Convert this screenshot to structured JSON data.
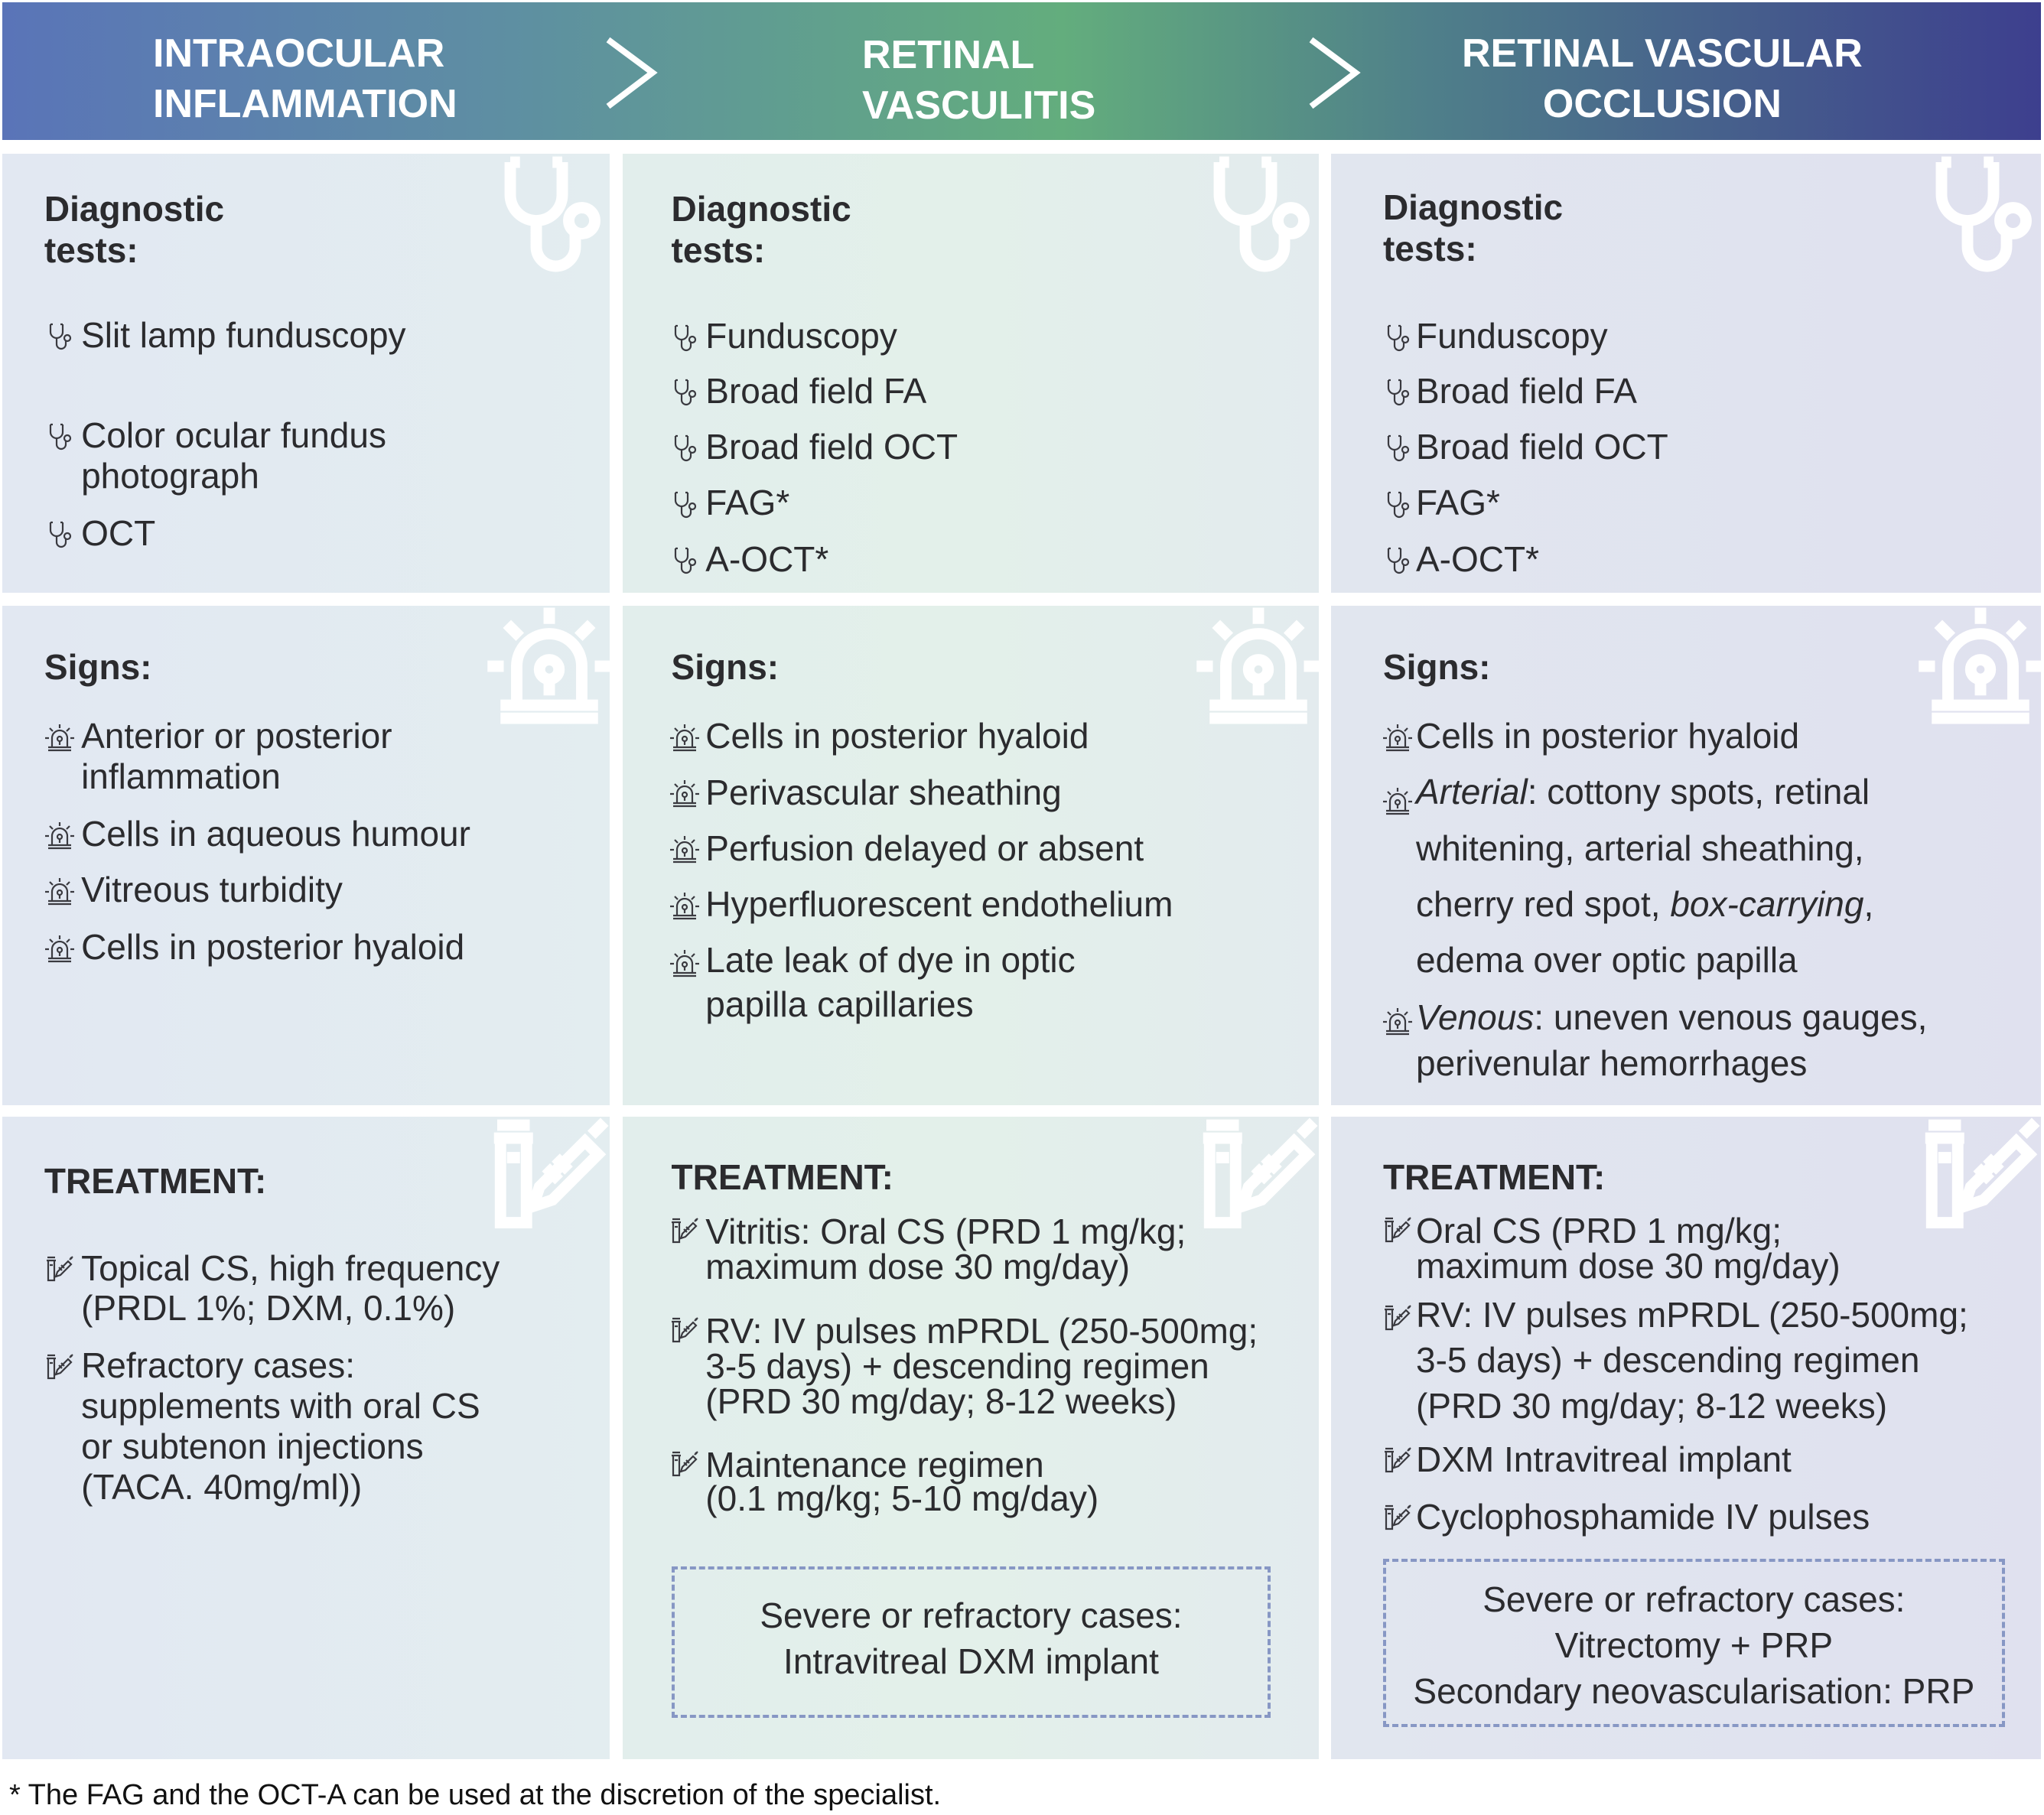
{
  "header": {
    "stages": [
      {
        "lines": [
          "INTRAOCULAR",
          "INFLAMMATION"
        ]
      },
      {
        "lines": [
          "RETINAL",
          "VASCULITIS"
        ]
      },
      {
        "lines": [
          "RETINAL VASCULAR",
          "OCCLUSION"
        ]
      }
    ],
    "arrow_icon": "chevron-right-icon",
    "gradient_colors": [
      "#5a74b8",
      "#63ad7d",
      "#3d3f8e"
    ]
  },
  "columns": [
    {
      "diagnostic": {
        "heading": [
          "Diagnostic",
          "tests:"
        ],
        "icon": "stethoscope-icon",
        "items": [
          {
            "lines": [
              "Slit lamp funduscopy"
            ]
          },
          {
            "lines": [
              "Color ocular fundus",
              "photograph"
            ]
          },
          {
            "lines": [
              "OCT"
            ]
          }
        ]
      },
      "signs": {
        "heading": [
          "Signs:"
        ],
        "icon": "alarm-siren-icon",
        "items": [
          {
            "lines": [
              "Anterior or posterior",
              "inflammation"
            ]
          },
          {
            "lines": [
              "Cells in aqueous humour"
            ]
          },
          {
            "lines": [
              "Vitreous turbidity"
            ]
          },
          {
            "lines": [
              "Cells in posterior hyaloid"
            ]
          }
        ]
      },
      "treatment": {
        "heading": [
          "TREATMENT:"
        ],
        "icon": "syringe-vial-icon",
        "items": [
          {
            "lines": [
              "Topical CS, high frequency",
              "(PRDL 1%; DXM, 0.1%)"
            ]
          },
          {
            "lines": [
              "Refractory cases:",
              "supplements with oral CS",
              "or subtenon injections",
              "(TACA. 40mg/ml))"
            ]
          }
        ]
      }
    },
    {
      "diagnostic": {
        "heading": [
          "Diagnostic",
          "tests:"
        ],
        "icon": "stethoscope-icon",
        "items": [
          {
            "lines": [
              "Funduscopy"
            ]
          },
          {
            "lines": [
              "Broad field FA"
            ]
          },
          {
            "lines": [
              "Broad field OCT"
            ]
          },
          {
            "lines": [
              "FAG*"
            ]
          },
          {
            "lines": [
              "A-OCT*"
            ]
          }
        ]
      },
      "signs": {
        "heading": [
          "Signs:"
        ],
        "icon": "alarm-siren-icon",
        "items": [
          {
            "lines": [
              "Cells in posterior hyaloid"
            ]
          },
          {
            "lines": [
              "Perivascular sheathing"
            ]
          },
          {
            "lines": [
              "Perfusion delayed or absent"
            ]
          },
          {
            "lines": [
              "Hyperfluorescent endothelium"
            ]
          },
          {
            "lines": [
              "Late leak of dye in optic",
              " papilla capillaries"
            ]
          }
        ]
      },
      "treatment": {
        "heading": [
          "TREATMENT:"
        ],
        "icon": "syringe-vial-icon",
        "items": [
          {
            "lines": [
              "Vitritis: Oral CS (PRD 1 mg/kg;",
              "maximum dose 30 mg/day)"
            ]
          },
          {
            "lines": [
              "RV: IV pulses mPRDL (250-500mg;",
              "3-5 days) + descending regimen",
              "(PRD 30 mg/day; 8-12 weeks)"
            ]
          },
          {
            "lines": [
              "Maintenance regimen",
              "(0.1 mg/kg; 5-10 mg/day)"
            ]
          }
        ],
        "box": [
          "Severe or refractory cases:",
          "Intravitreal DXM implant"
        ]
      }
    },
    {
      "diagnostic": {
        "heading": [
          "Diagnostic",
          "tests:"
        ],
        "icon": "stethoscope-icon",
        "items": [
          {
            "lines": [
              "Funduscopy"
            ]
          },
          {
            "lines": [
              "Broad field FA"
            ]
          },
          {
            "lines": [
              "Broad field OCT"
            ]
          },
          {
            "lines": [
              "FAG*"
            ]
          },
          {
            "lines": [
              "A-OCT*"
            ]
          }
        ]
      },
      "signs": {
        "heading": [
          "Signs:"
        ],
        "icon": "alarm-siren-icon",
        "items": [
          {
            "lines": [
              "Cells in posterior hyaloid"
            ]
          },
          {
            "lines": [
              [
                {
                  "text": "Arterial",
                  "italic": true
                },
                {
                  "text": ": cottony spots, retinal"
                }
              ],
              "whitening, arterial sheathing,",
              [
                {
                  "text": "cherry red spot, "
                },
                {
                  "text": "box-carrying",
                  "italic": true
                },
                {
                  "text": ","
                }
              ],
              "edema over optic papilla"
            ]
          },
          {
            "lines": [
              [
                {
                  "text": "Venous",
                  "italic": true
                },
                {
                  "text": ":  uneven venous gauges,"
                }
              ],
              "perivenular hemorrhages"
            ]
          }
        ]
      },
      "treatment": {
        "heading": [
          "TREATMENT:"
        ],
        "icon": "syringe-vial-icon",
        "items": [
          {
            "lines": [
              "Oral CS (PRD 1 mg/kg;",
              "maximum dose 30 mg/day)"
            ]
          },
          {
            "lines": [
              "RV: IV pulses mPRDL (250-500mg;",
              "3-5 days) + descending regimen",
              "(PRD 30 mg/day; 8-12 weeks)"
            ]
          },
          {
            "lines": [
              "DXM Intravitreal implant"
            ]
          },
          {
            "lines": [
              "Cyclophosphamide IV pulses"
            ]
          }
        ],
        "box": [
          "Severe or refractory cases:",
          "Vitrectomy + PRP",
          "Secondary neovascularisation: PRP"
        ]
      }
    }
  ],
  "footnote": "* The FAG and the OCT-A can be used at the discretion of the specialist."
}
